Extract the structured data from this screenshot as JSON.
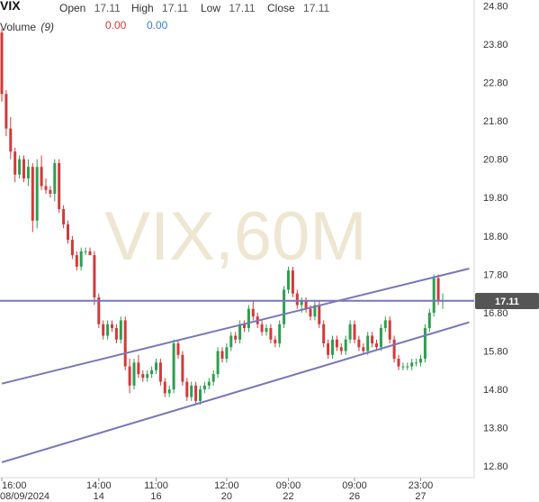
{
  "header": {
    "symbol": "VIX",
    "open_label": "Open",
    "open_value": "17.11",
    "high_label": "High",
    "high_value": "17.11",
    "low_label": "Low",
    "low_value": "17.11",
    "close_label": "Close",
    "close_value": "17.11",
    "volume_label": "Volume",
    "volume_period": "(9)",
    "volume_value_1": "0.00",
    "volume_value_2": "0.00"
  },
  "watermark": "VIX,60M",
  "price_tag": "17.11",
  "colors": {
    "up": "#2e9e4f",
    "down": "#d23a3a",
    "trendline": "#7777bb",
    "bg": "#ffffff",
    "tag_bg": "#555555"
  },
  "chart_data": {
    "type": "candlestick",
    "title": "",
    "y_ticks": [
      12.8,
      13.8,
      14.8,
      15.8,
      16.8,
      17.8,
      18.8,
      19.8,
      20.8,
      21.8,
      22.8,
      23.8,
      24.8
    ],
    "ylim": [
      12.5,
      24.95
    ],
    "x_labels": [
      {
        "time": "16:00",
        "date": "08/09/2024",
        "idx": 0
      },
      {
        "time": "14:00",
        "date": "14",
        "idx": 22
      },
      {
        "time": "11:00",
        "date": "16",
        "idx": 35
      },
      {
        "time": "12:00",
        "date": "20",
        "idx": 51
      },
      {
        "time": "09:00",
        "date": "22",
        "idx": 65
      },
      {
        "time": "09:00",
        "date": "26",
        "idx": 80
      },
      {
        "time": "23:00",
        "date": "27",
        "idx": 95
      }
    ],
    "last_price": 17.11,
    "horizontal_line": 17.11,
    "channel_upper": {
      "start": {
        "idx": 0,
        "value": 14.95
      },
      "end": {
        "idx": 106,
        "value": 17.95
      }
    },
    "channel_lower": {
      "start": {
        "idx": 0,
        "value": 12.9
      },
      "end": {
        "idx": 106,
        "value": 16.55
      }
    },
    "candles": [
      [
        24.1,
        24.2,
        22.3,
        22.5
      ],
      [
        22.5,
        22.6,
        21.4,
        21.6
      ],
      [
        21.6,
        21.9,
        20.8,
        21.0
      ],
      [
        21.0,
        21.1,
        20.2,
        20.4
      ],
      [
        20.4,
        20.9,
        20.3,
        20.8
      ],
      [
        20.8,
        20.9,
        20.2,
        20.3
      ],
      [
        20.3,
        20.8,
        20.1,
        20.6
      ],
      [
        20.6,
        20.7,
        18.9,
        19.2
      ],
      [
        19.2,
        20.8,
        19.0,
        20.6
      ],
      [
        20.6,
        20.9,
        20.0,
        20.1
      ],
      [
        20.1,
        20.3,
        19.9,
        20.0
      ],
      [
        20.0,
        20.1,
        19.8,
        19.9
      ],
      [
        19.9,
        20.8,
        19.7,
        20.7
      ],
      [
        20.7,
        20.8,
        19.4,
        19.5
      ],
      [
        19.5,
        19.6,
        19.0,
        19.1
      ],
      [
        19.1,
        19.2,
        18.6,
        18.7
      ],
      [
        18.7,
        18.8,
        18.2,
        18.3
      ],
      [
        18.3,
        18.4,
        17.9,
        18.0
      ],
      [
        18.0,
        18.5,
        17.9,
        18.4
      ],
      [
        18.4,
        18.5,
        18.3,
        18.4
      ],
      [
        18.4,
        18.5,
        18.3,
        18.3
      ],
      [
        18.3,
        18.4,
        17.0,
        17.2
      ],
      [
        17.2,
        17.3,
        16.4,
        16.5
      ],
      [
        16.5,
        16.6,
        16.1,
        16.2
      ],
      [
        16.2,
        16.6,
        16.1,
        16.5
      ],
      [
        16.5,
        16.6,
        16.3,
        16.4
      ],
      [
        16.4,
        16.5,
        16.0,
        16.1
      ],
      [
        16.1,
        16.7,
        16.0,
        16.6
      ],
      [
        16.6,
        16.7,
        15.3,
        15.4
      ],
      [
        15.4,
        15.6,
        14.7,
        14.9
      ],
      [
        14.9,
        15.6,
        14.8,
        15.5
      ],
      [
        15.5,
        15.7,
        15.1,
        15.2
      ],
      [
        15.2,
        15.3,
        15.0,
        15.1
      ],
      [
        15.1,
        15.3,
        15.0,
        15.2
      ],
      [
        15.2,
        15.4,
        15.1,
        15.3
      ],
      [
        15.3,
        15.6,
        15.2,
        15.5
      ],
      [
        15.5,
        15.6,
        14.9,
        15.0
      ],
      [
        15.0,
        15.1,
        14.6,
        14.7
      ],
      [
        14.7,
        14.9,
        14.6,
        14.8
      ],
      [
        14.8,
        16.1,
        14.7,
        16.0
      ],
      [
        16.0,
        16.1,
        15.6,
        15.7
      ],
      [
        15.7,
        15.8,
        14.9,
        15.0
      ],
      [
        15.0,
        15.1,
        14.5,
        14.6
      ],
      [
        14.6,
        15.0,
        14.5,
        14.9
      ],
      [
        14.9,
        15.0,
        14.4,
        14.5
      ],
      [
        14.5,
        14.9,
        14.4,
        14.8
      ],
      [
        14.8,
        15.0,
        14.7,
        14.9
      ],
      [
        14.9,
        15.1,
        14.8,
        15.0
      ],
      [
        15.0,
        15.3,
        14.9,
        15.2
      ],
      [
        15.2,
        15.9,
        15.1,
        15.8
      ],
      [
        15.8,
        15.9,
        15.5,
        15.6
      ],
      [
        15.6,
        16.0,
        15.5,
        15.9
      ],
      [
        15.9,
        16.3,
        15.8,
        16.2
      ],
      [
        16.2,
        16.3,
        16.0,
        16.1
      ],
      [
        16.1,
        16.6,
        16.0,
        16.5
      ],
      [
        16.5,
        16.6,
        16.3,
        16.4
      ],
      [
        16.4,
        17.0,
        16.3,
        16.9
      ],
      [
        16.9,
        17.1,
        16.6,
        16.7
      ],
      [
        16.7,
        16.8,
        16.4,
        16.5
      ],
      [
        16.5,
        16.6,
        16.2,
        16.3
      ],
      [
        16.3,
        16.5,
        16.2,
        16.4
      ],
      [
        16.4,
        16.5,
        16.0,
        16.1
      ],
      [
        16.1,
        16.2,
        15.9,
        16.0
      ],
      [
        16.0,
        16.6,
        15.9,
        16.5
      ],
      [
        16.5,
        17.5,
        16.4,
        17.4
      ],
      [
        17.4,
        18.0,
        17.3,
        17.9
      ],
      [
        17.9,
        18.0,
        17.2,
        17.3
      ],
      [
        17.3,
        17.4,
        16.9,
        17.0
      ],
      [
        17.0,
        17.2,
        16.8,
        17.1
      ],
      [
        17.1,
        17.2,
        16.8,
        16.9
      ],
      [
        16.9,
        17.0,
        16.6,
        16.7
      ],
      [
        16.7,
        17.1,
        16.6,
        17.0
      ],
      [
        17.0,
        17.1,
        16.4,
        16.5
      ],
      [
        16.5,
        16.6,
        15.9,
        16.0
      ],
      [
        16.0,
        16.1,
        15.6,
        15.7
      ],
      [
        15.7,
        16.2,
        15.6,
        16.1
      ],
      [
        16.1,
        16.2,
        15.8,
        15.9
      ],
      [
        15.9,
        16.0,
        15.7,
        15.8
      ],
      [
        15.8,
        16.2,
        15.7,
        16.1
      ],
      [
        16.1,
        16.6,
        16.0,
        16.5
      ],
      [
        16.5,
        16.6,
        16.0,
        16.1
      ],
      [
        16.1,
        16.2,
        15.8,
        15.9
      ],
      [
        15.9,
        16.0,
        15.7,
        15.8
      ],
      [
        15.8,
        16.3,
        15.7,
        16.2
      ],
      [
        16.2,
        16.3,
        15.9,
        16.0
      ],
      [
        16.0,
        16.1,
        15.8,
        15.9
      ],
      [
        15.9,
        16.5,
        15.8,
        16.4
      ],
      [
        16.4,
        16.7,
        16.3,
        16.6
      ],
      [
        16.6,
        16.7,
        16.0,
        16.1
      ],
      [
        16.1,
        16.2,
        15.5,
        15.6
      ],
      [
        15.6,
        15.7,
        15.3,
        15.4
      ],
      [
        15.4,
        15.5,
        15.3,
        15.4
      ],
      [
        15.4,
        15.5,
        15.3,
        15.4
      ],
      [
        15.4,
        15.6,
        15.3,
        15.5
      ],
      [
        15.5,
        15.6,
        15.4,
        15.5
      ],
      [
        15.5,
        15.7,
        15.4,
        15.6
      ],
      [
        15.6,
        16.5,
        15.5,
        16.4
      ],
      [
        16.4,
        16.9,
        16.3,
        16.8
      ],
      [
        16.8,
        17.8,
        16.7,
        17.7
      ],
      [
        17.7,
        17.8,
        17.0,
        17.1
      ],
      [
        17.1,
        17.3,
        16.9,
        17.11
      ]
    ]
  }
}
